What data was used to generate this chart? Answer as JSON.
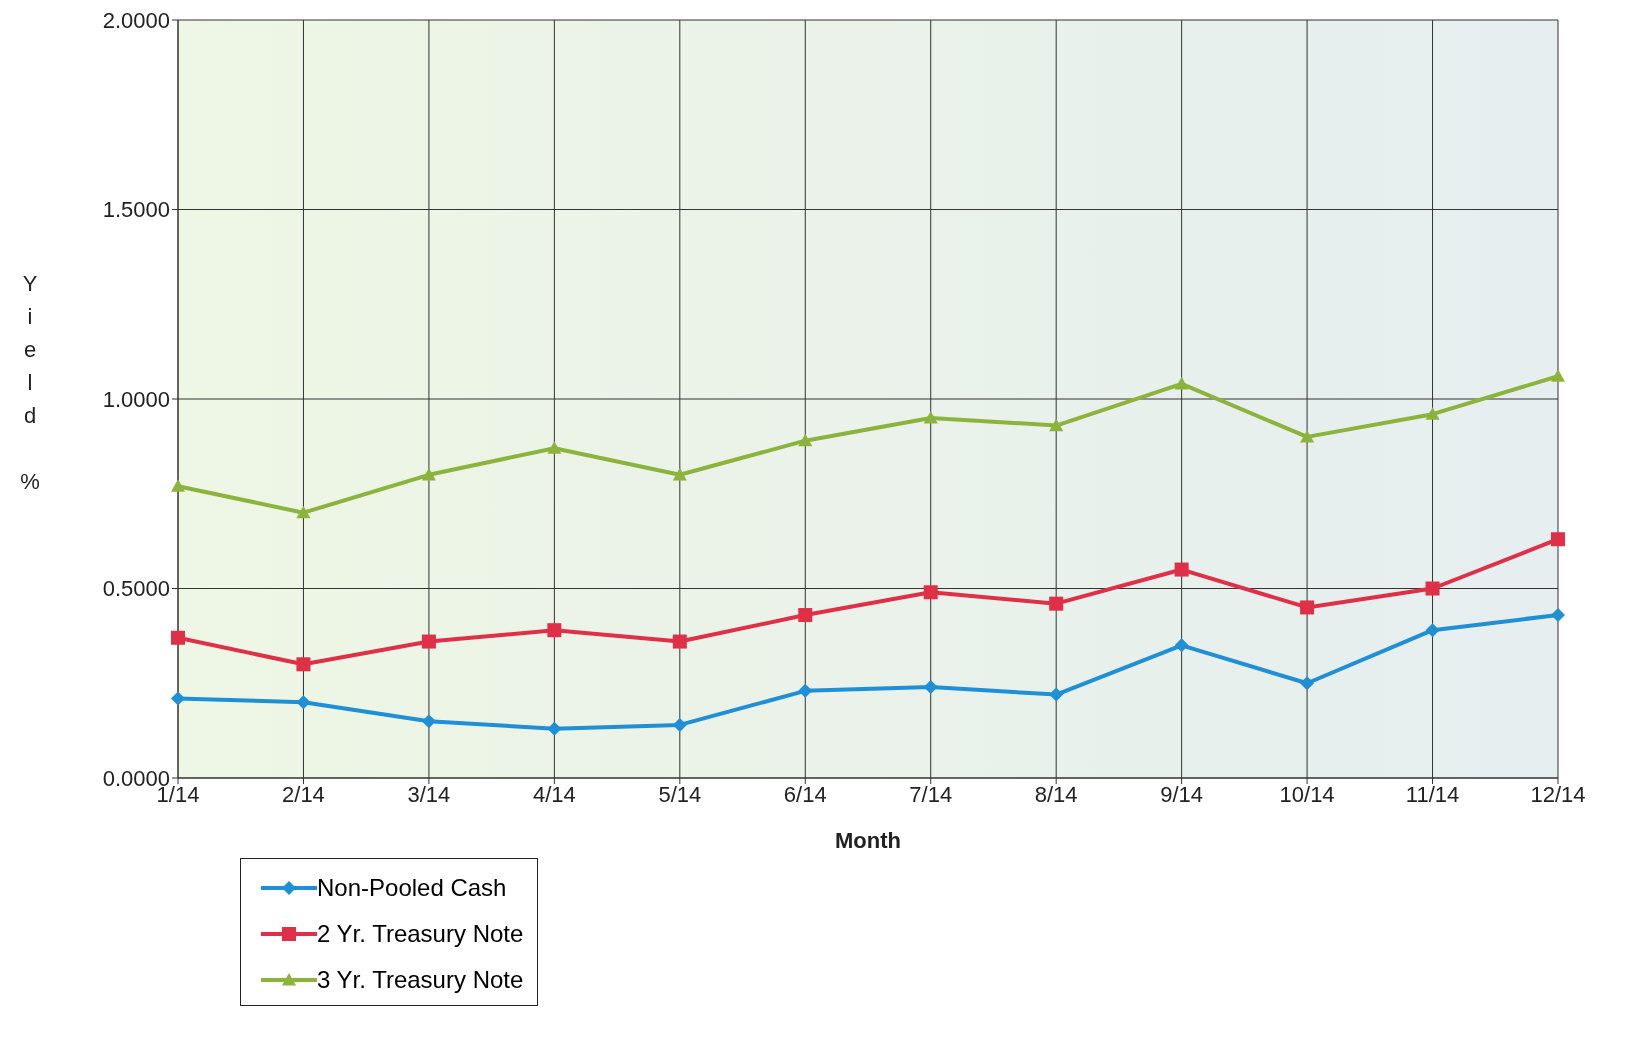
{
  "chart_data": {
    "type": "line",
    "xlabel": "Month",
    "ylabel": "Yield %",
    "categories": [
      "1/14",
      "2/14",
      "3/14",
      "4/14",
      "5/14",
      "6/14",
      "7/14",
      "8/14",
      "9/14",
      "10/14",
      "11/14",
      "12/14"
    ],
    "series": [
      {
        "name": "Non-Pooled Cash",
        "color": "#1f8fd6",
        "marker": "diamond",
        "values": [
          0.21,
          0.2,
          0.15,
          0.13,
          0.14,
          0.23,
          0.24,
          0.22,
          0.35,
          0.25,
          0.39,
          0.43
        ]
      },
      {
        "name": "2 Yr. Treasury Note",
        "color": "#e03048",
        "marker": "square",
        "values": [
          0.37,
          0.3,
          0.36,
          0.39,
          0.36,
          0.43,
          0.49,
          0.46,
          0.55,
          0.45,
          0.5,
          0.63
        ]
      },
      {
        "name": "3 Yr. Treasury Note",
        "color": "#8cb43c",
        "marker": "triangle",
        "values": [
          0.77,
          0.7,
          0.8,
          0.87,
          0.8,
          0.89,
          0.95,
          0.93,
          1.04,
          0.9,
          0.96,
          1.06
        ]
      }
    ],
    "ylim": [
      0,
      2
    ],
    "yticks": [
      {
        "value": 0,
        "label": "0.0000"
      },
      {
        "value": 0.5,
        "label": "0.5000"
      },
      {
        "value": 1,
        "label": "1.0000"
      },
      {
        "value": 1.5,
        "label": "1.5000"
      },
      {
        "value": 2,
        "label": "2.0000"
      }
    ],
    "grid": true,
    "legend": "bottom left",
    "line_style": "solid"
  }
}
